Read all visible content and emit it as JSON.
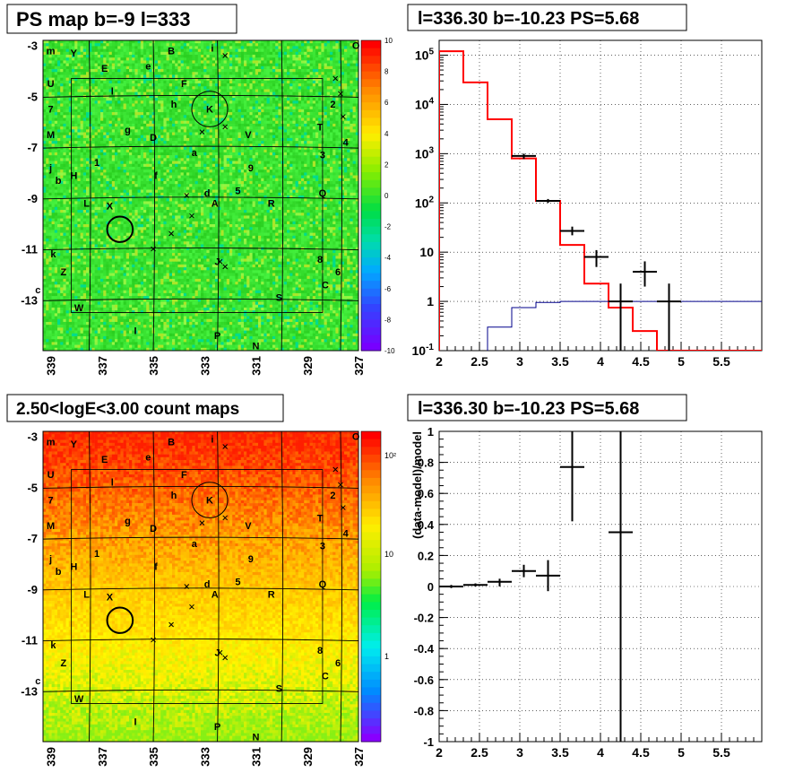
{
  "panels": {
    "tl_title": "PS map b=-9 l=333",
    "tr_title": "l=336.30 b=-10.23 PS=5.68",
    "bl_title": "2.50<logE<3.00 count maps",
    "br_title": "l=336.30 b=-10.23 PS=5.68"
  },
  "map": {
    "y_ticks": [
      "-3",
      "-5",
      "-7",
      "-9",
      "-11",
      "-13"
    ],
    "x_ticks": [
      "339",
      "337",
      "335",
      "333",
      "331",
      "329",
      "327"
    ],
    "colorbar_ps": [
      "10",
      "8",
      "6",
      "4",
      "2",
      "0",
      "-2",
      "-4",
      "-6",
      "-8",
      "-10"
    ],
    "colorbar_count": [
      "10²",
      "10",
      "1"
    ],
    "labels": [
      {
        "t": "m",
        "x": 339.0,
        "y": -3.2
      },
      {
        "t": "Y",
        "x": 338.1,
        "y": -3.3
      },
      {
        "t": "B",
        "x": 334.3,
        "y": -3.2
      },
      {
        "t": "i",
        "x": 332.7,
        "y": -3.1
      },
      {
        "t": "O",
        "x": 327.1,
        "y": -3.0
      },
      {
        "t": "E",
        "x": 336.9,
        "y": -3.9
      },
      {
        "t": "e",
        "x": 335.2,
        "y": -3.8
      },
      {
        "t": "U",
        "x": 339.0,
        "y": -4.5
      },
      {
        "t": "F",
        "x": 333.8,
        "y": -4.5
      },
      {
        "t": "l",
        "x": 336.6,
        "y": -4.8
      },
      {
        "t": "7",
        "x": 339.0,
        "y": -5.5
      },
      {
        "t": "h",
        "x": 334.2,
        "y": -5.3
      },
      {
        "t": "K",
        "x": 332.8,
        "y": -5.5
      },
      {
        "t": "2",
        "x": 328.0,
        "y": -5.3
      },
      {
        "t": "g",
        "x": 336.0,
        "y": -6.3
      },
      {
        "t": "M",
        "x": 339.0,
        "y": -6.5
      },
      {
        "t": "D",
        "x": 335.0,
        "y": -6.6
      },
      {
        "t": "V",
        "x": 331.3,
        "y": -6.5
      },
      {
        "t": "T",
        "x": 328.5,
        "y": -6.2
      },
      {
        "t": "4",
        "x": 327.5,
        "y": -6.8
      },
      {
        "t": "a",
        "x": 333.4,
        "y": -7.2
      },
      {
        "t": "3",
        "x": 328.4,
        "y": -7.3
      },
      {
        "t": "1",
        "x": 337.2,
        "y": -7.6
      },
      {
        "t": "9",
        "x": 331.2,
        "y": -7.8
      },
      {
        "t": "j",
        "x": 339.0,
        "y": -7.8
      },
      {
        "t": "H",
        "x": 338.1,
        "y": -8.1
      },
      {
        "t": "b",
        "x": 338.7,
        "y": -8.3
      },
      {
        "t": "f",
        "x": 334.9,
        "y": -8.1
      },
      {
        "t": "d",
        "x": 332.9,
        "y": -8.8
      },
      {
        "t": "5",
        "x": 331.7,
        "y": -8.7
      },
      {
        "t": "Q",
        "x": 328.4,
        "y": -8.8
      },
      {
        "t": "L",
        "x": 337.6,
        "y": -9.2
      },
      {
        "t": "X",
        "x": 336.7,
        "y": -9.3
      },
      {
        "t": "A",
        "x": 332.6,
        "y": -9.2
      },
      {
        "t": "R",
        "x": 330.4,
        "y": -9.2
      },
      {
        "t": "k",
        "x": 338.9,
        "y": -11.2
      },
      {
        "t": "8",
        "x": 328.5,
        "y": -11.4
      },
      {
        "t": "J",
        "x": 332.5,
        "y": -11.5
      },
      {
        "t": "Z",
        "x": 338.5,
        "y": -11.9
      },
      {
        "t": "6",
        "x": 327.8,
        "y": -11.9
      },
      {
        "t": "C",
        "x": 328.3,
        "y": -12.4
      },
      {
        "t": "c",
        "x": 339.5,
        "y": -12.6
      },
      {
        "t": "S",
        "x": 330.1,
        "y": -12.9
      },
      {
        "t": "W",
        "x": 337.9,
        "y": -13.3
      },
      {
        "t": "I",
        "x": 335.7,
        "y": -14.2
      },
      {
        "t": "P",
        "x": 332.5,
        "y": -14.4
      },
      {
        "t": "N",
        "x": 331.0,
        "y": -14.8
      }
    ],
    "crosses": [
      {
        "x": 332.2,
        "y": -3.4
      },
      {
        "x": 327.9,
        "y": -4.3
      },
      {
        "x": 327.6,
        "y": -5.8
      },
      {
        "x": 332.2,
        "y": -6.2
      },
      {
        "x": 333.1,
        "y": -6.4
      },
      {
        "x": 333.7,
        "y": -8.9
      },
      {
        "x": 333.5,
        "y": -9.7
      },
      {
        "x": 334.3,
        "y": -10.4
      },
      {
        "x": 335.0,
        "y": -11.0
      },
      {
        "x": 332.4,
        "y": -11.5
      },
      {
        "x": 327.7,
        "y": -4.9
      },
      {
        "x": 332.2,
        "y": -11.7
      }
    ],
    "circles": [
      {
        "x": 336.3,
        "y": -10.23,
        "r": 0.5
      },
      {
        "x": 332.8,
        "y": -5.5,
        "r": 0.7
      }
    ]
  },
  "chart_data": [
    {
      "type": "line",
      "title": "l=336.30 b=-10.23 PS=5.68",
      "xlim": [
        2,
        6
      ],
      "ylim": [
        0.1,
        200000
      ],
      "yscale": "log",
      "x_ticks": [
        "2",
        "2.5",
        "3",
        "3.5",
        "4",
        "4.5",
        "5",
        "5.5"
      ],
      "y_ticks": [
        "10^-1",
        "1",
        "10",
        "10^2",
        "10^3",
        "10^4",
        "10^5"
      ],
      "grid": true,
      "series": [
        {
          "color": "#ff0000",
          "edges": [
            2.0,
            2.3,
            2.6,
            2.9,
            3.2,
            3.5,
            3.8,
            4.1,
            4.4,
            4.7,
            6.0
          ],
          "values": [
            120000,
            28000,
            5000,
            800,
            110,
            14,
            2.3,
            0.75,
            0.25,
            0.1
          ]
        },
        {
          "color": "#00008b",
          "edges": [
            2.6,
            2.9,
            3.2,
            3.5,
            3.8,
            4.1,
            4.4,
            4.7,
            6.0
          ],
          "values": [
            0.3,
            0.75,
            0.95,
            1.0,
            1.0,
            1.0,
            1.0,
            1.0
          ]
        },
        {
          "color": "#000000",
          "points": [
            {
              "x": 3.05,
              "y": 900,
              "xerr": 0.15,
              "ylo": 780,
              "yhi": 1000
            },
            {
              "x": 3.35,
              "y": 110,
              "xerr": 0.15,
              "ylo": 100,
              "yhi": 120
            },
            {
              "x": 3.65,
              "y": 27,
              "xerr": 0.15,
              "ylo": 22,
              "yhi": 33
            },
            {
              "x": 3.95,
              "y": 8,
              "xerr": 0.15,
              "ylo": 5,
              "yhi": 11
            },
            {
              "x": 4.25,
              "y": 1,
              "xerr": 0.15,
              "ylo": 0.1,
              "yhi": 2.3
            },
            {
              "x": 4.55,
              "y": 4,
              "xerr": 0.15,
              "ylo": 2.0,
              "yhi": 6.5
            },
            {
              "x": 4.85,
              "y": 1,
              "xerr": 0.15,
              "ylo": 0.1,
              "yhi": 2.3
            }
          ]
        }
      ]
    },
    {
      "type": "scatter",
      "title": "l=336.30 b=-10.23 PS=5.68",
      "ylabel": "(data-model)/model",
      "xlim": [
        2,
        6
      ],
      "ylim": [
        -1,
        1
      ],
      "x_ticks": [
        "2",
        "2.5",
        "3",
        "3.5",
        "4",
        "4.5",
        "5",
        "5.5"
      ],
      "y_ticks": [
        "-1",
        "-0.8",
        "-0.6",
        "-0.4",
        "-0.2",
        "0",
        "0.2",
        "0.4",
        "0.6",
        "0.8",
        "1"
      ],
      "grid": true,
      "series": [
        {
          "color": "#000000",
          "points": [
            {
              "x": 2.15,
              "y": 0.0,
              "xerr": 0.15,
              "ylo": -0.01,
              "yhi": 0.01
            },
            {
              "x": 2.45,
              "y": 0.01,
              "xerr": 0.15,
              "ylo": 0.0,
              "yhi": 0.02
            },
            {
              "x": 2.75,
              "y": 0.03,
              "xerr": 0.15,
              "ylo": 0.0,
              "yhi": 0.05
            },
            {
              "x": 3.05,
              "y": 0.1,
              "xerr": 0.15,
              "ylo": 0.06,
              "yhi": 0.14
            },
            {
              "x": 3.35,
              "y": 0.07,
              "xerr": 0.15,
              "ylo": -0.03,
              "yhi": 0.17
            },
            {
              "x": 3.65,
              "y": 0.77,
              "xerr": 0.15,
              "ylo": 0.42,
              "yhi": 1.0
            },
            {
              "x": 4.25,
              "y": 0.35,
              "xerr": 0.15,
              "ylo": -1.0,
              "yhi": 1.0
            }
          ]
        }
      ]
    }
  ]
}
